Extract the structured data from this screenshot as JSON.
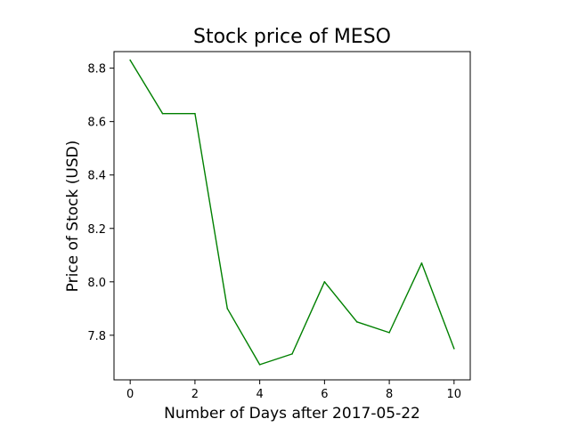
{
  "chart_data": {
    "type": "line",
    "title": "Stock price of MESO",
    "xlabel": "Number of Days after 2017-05-22",
    "ylabel": "Price of Stock (USD)",
    "x": [
      0,
      1,
      2,
      3,
      4,
      5,
      6,
      7,
      8,
      9,
      10
    ],
    "series": [
      {
        "values": [
          8.83,
          8.63,
          8.63,
          7.9,
          7.69,
          7.73,
          8.0,
          7.85,
          7.81,
          8.07,
          7.75
        ],
        "color": "#008000"
      }
    ],
    "xlim": [
      -0.5,
      10.5
    ],
    "ylim": [
      7.633,
      8.862
    ],
    "xticks": [
      0,
      2,
      4,
      6,
      8,
      10
    ],
    "xtick_labels": [
      "0",
      "2",
      "4",
      "6",
      "8",
      "10"
    ],
    "yticks": [
      7.8,
      8.0,
      8.2,
      8.4,
      8.6,
      8.8
    ],
    "ytick_labels": [
      "7.8",
      "8.0",
      "8.2",
      "8.4",
      "8.6",
      "8.8"
    ],
    "grid": false,
    "legend": "none"
  }
}
